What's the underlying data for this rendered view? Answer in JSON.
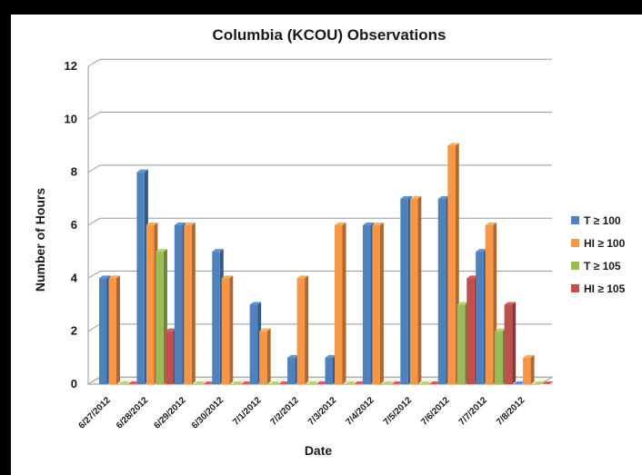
{
  "chart_data": {
    "type": "bar",
    "title": "Columbia (KCOU) Observations",
    "xlabel": "Date",
    "ylabel": "Number of Hours",
    "ylim": [
      0,
      12
    ],
    "yticks": [
      0,
      2,
      4,
      6,
      8,
      10,
      12
    ],
    "grid": true,
    "legend_position": "right",
    "categories": [
      "6/27/2012",
      "6/28/2012",
      "6/29/2012",
      "6/30/2012",
      "7/1/2012",
      "7/2/2012",
      "7/3/2012",
      "7/4/2012",
      "7/5/2012",
      "7/6/2012",
      "7/7/2012",
      "7/8/2012"
    ],
    "series": [
      {
        "name": "T ≥ 100",
        "color": "#4f81bd",
        "values": [
          4,
          8,
          6,
          5,
          3,
          1,
          1,
          6,
          7,
          7,
          5,
          0
        ]
      },
      {
        "name": "HI ≥ 100",
        "color": "#f79646",
        "values": [
          4,
          6,
          6,
          4,
          2,
          4,
          6,
          6,
          7,
          9,
          6,
          1
        ]
      },
      {
        "name": "T ≥ 105",
        "color": "#9bbb59",
        "values": [
          0,
          5,
          0,
          0,
          0,
          0,
          0,
          0,
          0,
          3,
          2,
          0
        ]
      },
      {
        "name": "HI ≥ 105",
        "color": "#c0504d",
        "values": [
          0,
          2,
          0,
          0,
          0,
          0,
          0,
          0,
          0,
          4,
          3,
          0
        ]
      }
    ]
  }
}
